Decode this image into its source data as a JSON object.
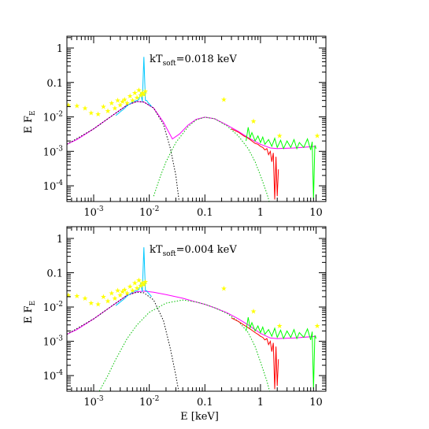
{
  "chart_data": [
    {
      "type": "line",
      "annotation": {
        "prefix": "kT",
        "subscript": "soft",
        "suffix": "=0.018 keV"
      },
      "xscale": "log",
      "yscale": "log",
      "xlim": [
        0.00033,
        15
      ],
      "ylim": [
        3.5e-05,
        2.2
      ],
      "y_ticks": [
        {
          "value": 1,
          "label": "1"
        },
        {
          "value": 0.1,
          "label": "0.1"
        },
        {
          "value": 0.01,
          "base": "10",
          "exp": "-2"
        },
        {
          "value": 0.001,
          "base": "10",
          "exp": "-3"
        },
        {
          "value": 0.0001,
          "base": "10",
          "exp": "-4"
        }
      ],
      "x_ticks": [
        {
          "value": 0.001,
          "base": "10",
          "exp": "-3"
        },
        {
          "value": 0.01,
          "base": "10",
          "exp": "-2"
        },
        {
          "value": 0.1,
          "label": "0.1"
        },
        {
          "value": 1,
          "label": "1"
        },
        {
          "value": 10,
          "label": "10"
        }
      ],
      "ylabel": {
        "text": "E F",
        "subscript": "E"
      },
      "xlabel": "",
      "series": [
        {
          "color": "#ff00ff",
          "style": "solid",
          "x": [
            0.00033,
            0.0005,
            0.001,
            0.002,
            0.004,
            0.006,
            0.008,
            0.012,
            0.018,
            0.026,
            0.035,
            0.05,
            0.07,
            0.1,
            0.15,
            0.25,
            0.4,
            0.6,
            1,
            1.5,
            2,
            4,
            10
          ],
          "y": [
            0.0016,
            0.0022,
            0.0045,
            0.01,
            0.022,
            0.028,
            0.027,
            0.018,
            0.007,
            0.0023,
            0.0032,
            0.0058,
            0.0085,
            0.0098,
            0.0088,
            0.0058,
            0.0038,
            0.0025,
            0.0016,
            0.00125,
            0.0012,
            0.00125,
            0.0014
          ]
        },
        {
          "color": "#000000",
          "style": "dotted",
          "x": [
            0.00033,
            0.001,
            0.002,
            0.004,
            0.006,
            0.008,
            0.012,
            0.018,
            0.024,
            0.03,
            0.036
          ],
          "y": [
            0.0016,
            0.0045,
            0.01,
            0.022,
            0.028,
            0.027,
            0.018,
            0.006,
            0.0012,
            0.0002,
            2e-05
          ]
        },
        {
          "color": "#00c000",
          "style": "dotted",
          "x": [
            0.012,
            0.016,
            0.02,
            0.03,
            0.05,
            0.07,
            0.1,
            0.15,
            0.25,
            0.4,
            0.6,
            0.8,
            1,
            1.3,
            1.8
          ],
          "y": [
            5e-05,
            0.0002,
            0.0005,
            0.0018,
            0.0052,
            0.0082,
            0.0098,
            0.0088,
            0.0055,
            0.0028,
            0.0012,
            0.0005,
            0.0002,
            6e-05,
            1e-05
          ]
        },
        {
          "color": "#00c8ff",
          "style": "solid",
          "x": [
            0.0025,
            0.003,
            0.0035,
            0.004,
            0.0045,
            0.005,
            0.0055,
            0.006,
            0.0065,
            0.007,
            0.0075,
            0.008,
            0.0085,
            0.009,
            0.0095,
            0.01,
            0.011
          ],
          "y": [
            0.011,
            0.014,
            0.017,
            0.021,
            0.024,
            0.027,
            0.029,
            0.03,
            0.032,
            0.05,
            0.028,
            0.55,
            0.03,
            0.03,
            0.026,
            0.024,
            0.02
          ]
        },
        {
          "color": "#ff0000",
          "style": "solid",
          "x": [
            0.3,
            0.4,
            0.5,
            0.6,
            0.7,
            0.8,
            0.9,
            1.0,
            1.1,
            1.2,
            1.3,
            1.4,
            1.5,
            1.6,
            1.7,
            1.8,
            1.9,
            2.0,
            2.1
          ],
          "y": [
            0.0045,
            0.0036,
            0.0028,
            0.0024,
            0.002,
            0.0017,
            0.0016,
            0.0014,
            0.0013,
            0.0011,
            0.0012,
            0.0008,
            0.001,
            0.0005,
            0.0009,
            4e-05,
            0.0007,
            5e-05,
            0.0003
          ]
        },
        {
          "color": "#00ff00",
          "style": "solid",
          "x": [
            0.55,
            0.6,
            0.65,
            0.7,
            0.8,
            0.9,
            1.0,
            1.1,
            1.2,
            1.4,
            1.6,
            1.8,
            2.0,
            2.3,
            2.6,
            3.0,
            3.5,
            4.0,
            4.5,
            5.0,
            6.0,
            7.0,
            8.0,
            8.5,
            9.0,
            9.5,
            10.0
          ],
          "y": [
            0.002,
            0.005,
            0.0025,
            0.0035,
            0.002,
            0.0028,
            0.0018,
            0.0026,
            0.0016,
            0.0022,
            0.0014,
            0.0024,
            0.0013,
            0.0021,
            0.0012,
            0.002,
            0.0013,
            0.0022,
            0.0012,
            0.0018,
            0.0013,
            0.0023,
            0.0011,
            0.0019,
            4e-05,
            0.0015,
            0.0012
          ]
        }
      ],
      "points": {
        "color": "#ffff00",
        "marker": "star",
        "x": [
          0.00035,
          0.0005,
          0.0007,
          0.0009,
          0.0012,
          0.0015,
          0.0018,
          0.0021,
          0.0024,
          0.0027,
          0.003,
          0.0033,
          0.0036,
          0.004,
          0.0045,
          0.005,
          0.0055,
          0.006,
          0.0065,
          0.007,
          0.0075,
          0.008,
          0.0085,
          0.22,
          0.75,
          2.2,
          10.5
        ],
        "y": [
          0.022,
          0.021,
          0.018,
          0.013,
          0.012,
          0.02,
          0.015,
          0.025,
          0.018,
          0.03,
          0.022,
          0.028,
          0.032,
          0.025,
          0.04,
          0.03,
          0.05,
          0.036,
          0.06,
          0.042,
          0.05,
          0.045,
          0.055,
          0.032,
          0.0075,
          0.0028,
          0.0028
        ]
      }
    },
    {
      "type": "line",
      "annotation": {
        "prefix": "kT",
        "subscript": "soft",
        "suffix": "=0.004 keV"
      },
      "xscale": "log",
      "yscale": "log",
      "xlim": [
        0.00033,
        15
      ],
      "ylim": [
        3.5e-05,
        2.2
      ],
      "y_ticks": [
        {
          "value": 1,
          "label": "1"
        },
        {
          "value": 0.1,
          "label": "0.1"
        },
        {
          "value": 0.01,
          "base": "10",
          "exp": "-2"
        },
        {
          "value": 0.001,
          "base": "10",
          "exp": "-3"
        },
        {
          "value": 0.0001,
          "base": "10",
          "exp": "-4"
        }
      ],
      "x_ticks": [
        {
          "value": 0.001,
          "base": "10",
          "exp": "-3"
        },
        {
          "value": 0.01,
          "base": "10",
          "exp": "-2"
        },
        {
          "value": 0.1,
          "label": "0.1"
        },
        {
          "value": 1,
          "label": "1"
        },
        {
          "value": 10,
          "label": "10"
        }
      ],
      "ylabel": {
        "text": "E F",
        "subscript": "E"
      },
      "xlabel": "E [keV]",
      "series": [
        {
          "color": "#ff00ff",
          "style": "solid",
          "x": [
            0.00033,
            0.0005,
            0.001,
            0.002,
            0.004,
            0.006,
            0.008,
            0.012,
            0.02,
            0.04,
            0.07,
            0.1,
            0.15,
            0.25,
            0.4,
            0.6,
            1,
            1.5,
            2,
            4,
            10
          ],
          "y": [
            0.0016,
            0.0022,
            0.0045,
            0.01,
            0.022,
            0.028,
            0.029,
            0.027,
            0.023,
            0.018,
            0.014,
            0.012,
            0.0095,
            0.0068,
            0.0045,
            0.003,
            0.0017,
            0.00125,
            0.0012,
            0.00125,
            0.0014
          ]
        },
        {
          "color": "#000000",
          "style": "dotted",
          "x": [
            0.00033,
            0.001,
            0.002,
            0.004,
            0.006,
            0.008,
            0.012,
            0.018,
            0.024,
            0.03,
            0.036
          ],
          "y": [
            0.0016,
            0.0045,
            0.01,
            0.022,
            0.027,
            0.026,
            0.016,
            0.004,
            0.0006,
            0.0001,
            2e-05
          ]
        },
        {
          "color": "#00c000",
          "style": "dotted",
          "x": [
            0.0012,
            0.0018,
            0.0025,
            0.004,
            0.006,
            0.01,
            0.02,
            0.04,
            0.07,
            0.1,
            0.15,
            0.25,
            0.4,
            0.6,
            0.8,
            1,
            1.3,
            1.8
          ],
          "y": [
            3e-05,
            0.0001,
            0.0003,
            0.0012,
            0.003,
            0.007,
            0.013,
            0.016,
            0.014,
            0.012,
            0.0095,
            0.0065,
            0.0038,
            0.0018,
            0.0007,
            0.00025,
            7e-05,
            1e-05
          ]
        },
        {
          "color": "#00c8ff",
          "style": "solid",
          "x": [
            0.0025,
            0.003,
            0.0035,
            0.004,
            0.0045,
            0.005,
            0.0055,
            0.006,
            0.0065,
            0.007,
            0.0075,
            0.008,
            0.0085,
            0.009,
            0.0095,
            0.01,
            0.011
          ],
          "y": [
            0.011,
            0.014,
            0.017,
            0.021,
            0.024,
            0.027,
            0.029,
            0.03,
            0.032,
            0.05,
            0.028,
            0.55,
            0.03,
            0.03,
            0.026,
            0.024,
            0.02
          ]
        },
        {
          "color": "#ff0000",
          "style": "solid",
          "x": [
            0.3,
            0.4,
            0.5,
            0.6,
            0.7,
            0.8,
            0.9,
            1.0,
            1.1,
            1.2,
            1.3,
            1.4,
            1.5,
            1.6,
            1.7,
            1.8,
            1.9,
            2.0,
            2.1
          ],
          "y": [
            0.0048,
            0.0038,
            0.003,
            0.0025,
            0.0021,
            0.0018,
            0.0016,
            0.0014,
            0.0013,
            0.0011,
            0.0012,
            0.0008,
            0.001,
            0.0005,
            0.0009,
            4e-05,
            0.0007,
            5e-05,
            0.0003
          ]
        },
        {
          "color": "#00ff00",
          "style": "solid",
          "x": [
            0.55,
            0.6,
            0.65,
            0.7,
            0.8,
            0.9,
            1.0,
            1.1,
            1.2,
            1.4,
            1.6,
            1.8,
            2.0,
            2.3,
            2.6,
            3.0,
            3.5,
            4.0,
            4.5,
            5.0,
            6.0,
            7.0,
            8.0,
            8.5,
            9.0,
            9.5,
            10.0
          ],
          "y": [
            0.002,
            0.005,
            0.0025,
            0.0035,
            0.002,
            0.0028,
            0.0018,
            0.0026,
            0.0016,
            0.0022,
            0.0014,
            0.0024,
            0.0013,
            0.0021,
            0.0012,
            0.002,
            0.0013,
            0.0022,
            0.0012,
            0.0018,
            0.0013,
            0.0023,
            0.0011,
            0.0019,
            4e-05,
            0.0015,
            0.0012
          ]
        }
      ],
      "points": {
        "color": "#ffff00",
        "marker": "star",
        "x": [
          0.00035,
          0.0005,
          0.0007,
          0.0009,
          0.0012,
          0.0015,
          0.0018,
          0.0021,
          0.0024,
          0.0027,
          0.003,
          0.0033,
          0.0036,
          0.004,
          0.0045,
          0.005,
          0.0055,
          0.006,
          0.0065,
          0.007,
          0.0075,
          0.008,
          0.0085,
          0.22,
          0.75,
          2.2,
          10.5
        ],
        "y": [
          0.022,
          0.021,
          0.018,
          0.013,
          0.012,
          0.02,
          0.015,
          0.025,
          0.018,
          0.03,
          0.022,
          0.028,
          0.032,
          0.025,
          0.04,
          0.03,
          0.05,
          0.036,
          0.06,
          0.042,
          0.05,
          0.045,
          0.055,
          0.035,
          0.0075,
          0.0028,
          0.0028
        ]
      }
    }
  ]
}
